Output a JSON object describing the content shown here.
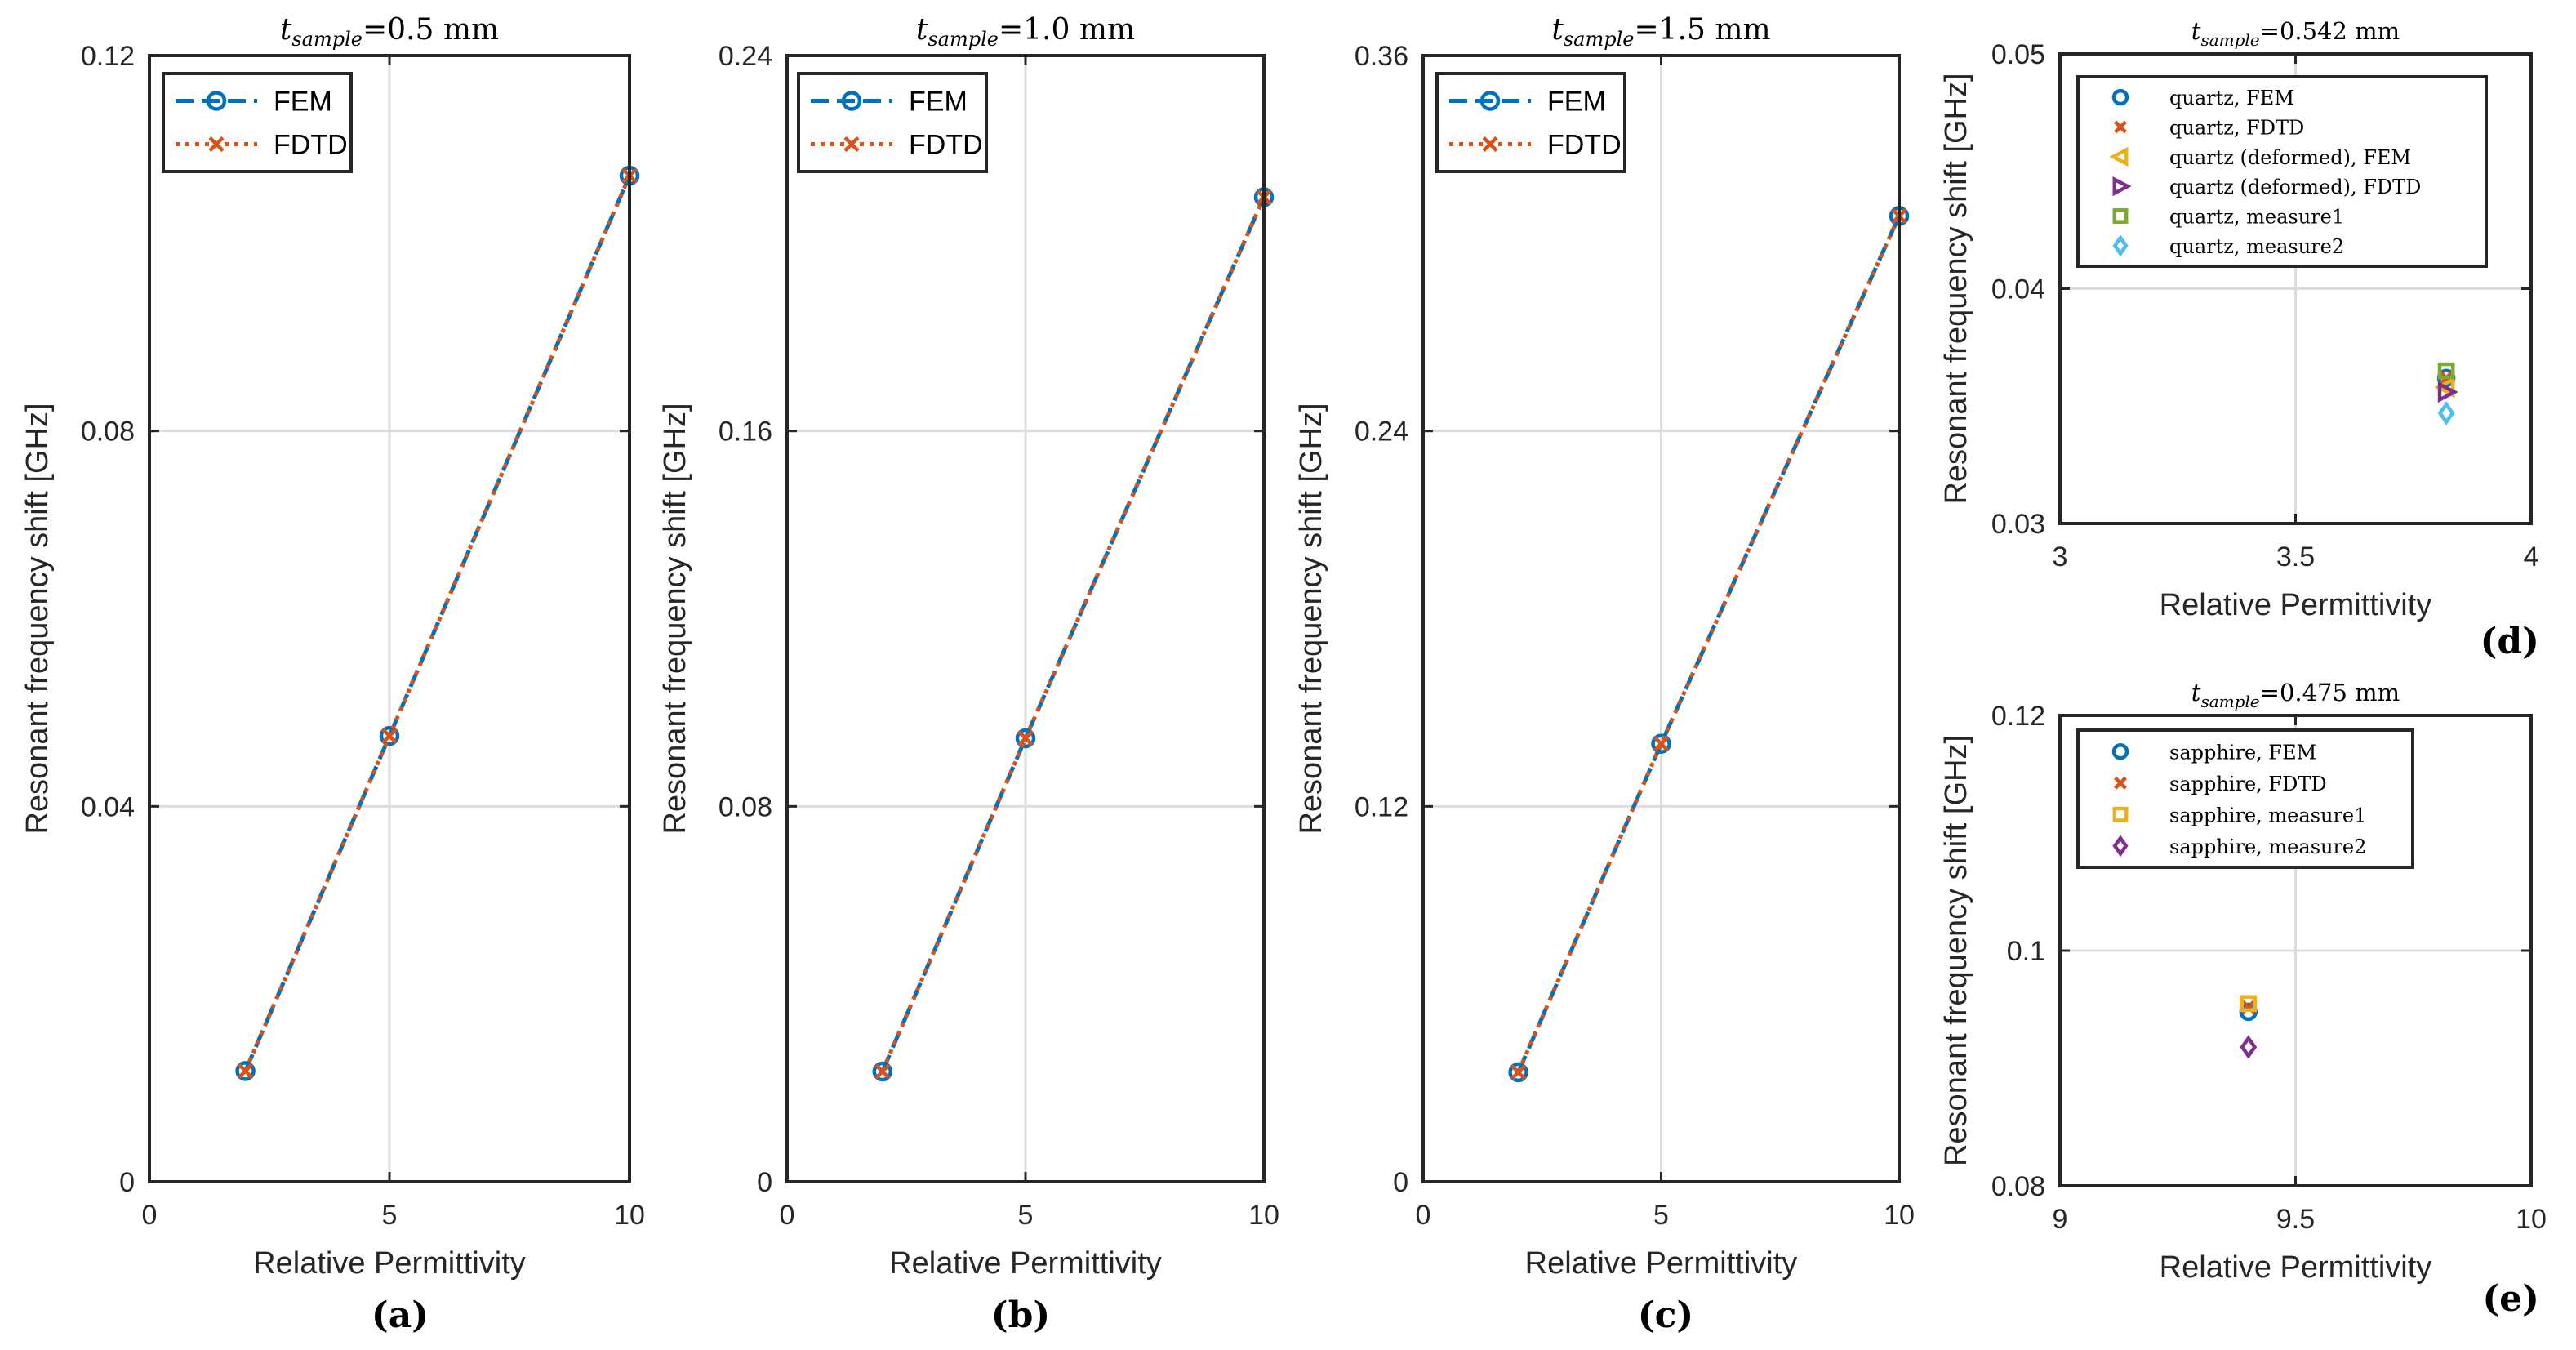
{
  "colors": {
    "fem": "#0072BD",
    "fdtd": "#D95319",
    "yellow": "#EDB120",
    "purple": "#7E2F8E",
    "green": "#77AC30",
    "cyan": "#4DBEEE"
  },
  "chart_data": [
    {
      "id": "a",
      "type": "line",
      "panel_label": "(a)",
      "title": {
        "var": "t",
        "sub": "sample",
        "rest": "=0.5 mm"
      },
      "xlabel": "Relative Permittivity",
      "ylabel": "Resonant frequency shift [GHz]",
      "xlim": [
        0,
        10
      ],
      "ylim": [
        0,
        0.12
      ],
      "xticks": [
        0,
        5,
        10
      ],
      "xtick_labels": [
        "0",
        "5",
        "10"
      ],
      "yticks": [
        0,
        0.04,
        0.08,
        0.12
      ],
      "ytick_labels": [
        "0",
        "0.04",
        "0.08",
        "0.12"
      ],
      "grid": true,
      "legend_position": "top-left",
      "series": [
        {
          "name": "FEM",
          "marker": "o",
          "line": "dashed",
          "color": "#0072BD",
          "x": [
            2,
            5,
            10
          ],
          "y": [
            0.0118,
            0.0475,
            0.1072
          ]
        },
        {
          "name": "FDTD",
          "marker": "x",
          "line": "dotted",
          "color": "#D95319",
          "x": [
            2,
            5,
            10
          ],
          "y": [
            0.0118,
            0.0475,
            0.1072
          ]
        }
      ]
    },
    {
      "id": "b",
      "type": "line",
      "panel_label": "(b)",
      "title": {
        "var": "t",
        "sub": "sample",
        "rest": "=1.0 mm"
      },
      "xlabel": "Relative Permittivity",
      "ylabel": "Resonant frequency shift [GHz]",
      "xlim": [
        0,
        10
      ],
      "ylim": [
        0,
        0.24
      ],
      "xticks": [
        0,
        5,
        10
      ],
      "xtick_labels": [
        "0",
        "5",
        "10"
      ],
      "yticks": [
        0,
        0.08,
        0.16,
        0.24
      ],
      "ytick_labels": [
        "0",
        "0.08",
        "0.16",
        "0.24"
      ],
      "grid": true,
      "legend_position": "top-left",
      "series": [
        {
          "name": "FEM",
          "marker": "o",
          "line": "dashed",
          "color": "#0072BD",
          "x": [
            2,
            5,
            10
          ],
          "y": [
            0.0235,
            0.0945,
            0.2098
          ]
        },
        {
          "name": "FDTD",
          "marker": "x",
          "line": "dotted",
          "color": "#D95319",
          "x": [
            2,
            5,
            10
          ],
          "y": [
            0.0235,
            0.0945,
            0.2098
          ]
        }
      ]
    },
    {
      "id": "c",
      "type": "line",
      "panel_label": "(c)",
      "title": {
        "var": "t",
        "sub": "sample",
        "rest": "=1.5 mm"
      },
      "xlabel": "Relative Permittivity",
      "ylabel": "Resonant frequency shift [GHz]",
      "xlim": [
        0,
        10
      ],
      "ylim": [
        0,
        0.36
      ],
      "xticks": [
        0,
        5,
        10
      ],
      "xtick_labels": [
        "0",
        "5",
        "10"
      ],
      "yticks": [
        0,
        0.12,
        0.24,
        0.36
      ],
      "ytick_labels": [
        "0",
        "0.12",
        "0.24",
        "0.36"
      ],
      "grid": true,
      "legend_position": "top-left",
      "series": [
        {
          "name": "FEM",
          "marker": "o",
          "line": "dashed",
          "color": "#0072BD",
          "x": [
            2,
            5,
            10
          ],
          "y": [
            0.035,
            0.14,
            0.3087
          ]
        },
        {
          "name": "FDTD",
          "marker": "x",
          "line": "dotted",
          "color": "#D95319",
          "x": [
            2,
            5,
            10
          ],
          "y": [
            0.035,
            0.14,
            0.3087
          ]
        }
      ]
    },
    {
      "id": "d",
      "type": "scatter",
      "panel_label": "(d)",
      "title": {
        "var": "t",
        "sub": "sample",
        "rest": "=0.542 mm"
      },
      "xlabel": "Relative Permittivity",
      "ylabel": "Resonant frequency shift [GHz]",
      "xlim": [
        3,
        4
      ],
      "ylim": [
        0.03,
        0.05
      ],
      "xticks": [
        3,
        3.5,
        4
      ],
      "xtick_labels": [
        "3",
        "3.5",
        "4"
      ],
      "yticks": [
        0.03,
        0.04,
        0.05
      ],
      "ytick_labels": [
        "0.03",
        "0.04",
        "0.05"
      ],
      "grid": true,
      "legend_position": "top-left",
      "series": [
        {
          "name": "quartz, FEM",
          "marker": "o",
          "color": "#0072BD",
          "x": [
            3.82
          ],
          "y": [
            0.0362
          ]
        },
        {
          "name": "quartz, FDTD",
          "marker": "x",
          "color": "#D95319",
          "x": [
            3.82
          ],
          "y": [
            0.0362
          ]
        },
        {
          "name": "quartz (deformed), FEM",
          "marker": "tri-left",
          "color": "#EDB120",
          "x": [
            3.82
          ],
          "y": [
            0.0358
          ]
        },
        {
          "name": "quartz (deformed), FDTD",
          "marker": "tri-right",
          "color": "#7E2F8E",
          "x": [
            3.82
          ],
          "y": [
            0.0356
          ]
        },
        {
          "name": "quartz, measure1",
          "marker": "square",
          "color": "#77AC30",
          "x": [
            3.82
          ],
          "y": [
            0.0365
          ]
        },
        {
          "name": "quartz, measure2",
          "marker": "diamond",
          "color": "#4DBEEE",
          "x": [
            3.82
          ],
          "y": [
            0.0347
          ]
        }
      ]
    },
    {
      "id": "e",
      "type": "scatter",
      "panel_label": "(e)",
      "title": {
        "var": "t",
        "sub": "sample",
        "rest": "=0.475 mm"
      },
      "xlabel": "Relative Permittivity",
      "ylabel": "Resonant frequency shift [GHz]",
      "xlim": [
        9,
        10
      ],
      "ylim": [
        0.08,
        0.12
      ],
      "xticks": [
        9,
        9.5,
        10
      ],
      "xtick_labels": [
        "9",
        "9.5",
        "10"
      ],
      "yticks": [
        0.08,
        0.1,
        0.12
      ],
      "ytick_labels": [
        "0.08",
        "0.1",
        "0.12"
      ],
      "grid": true,
      "legend_position": "top-left",
      "series": [
        {
          "name": "sapphire, FEM",
          "marker": "o",
          "color": "#0072BD",
          "x": [
            9.4
          ],
          "y": [
            0.0948
          ]
        },
        {
          "name": "sapphire, FDTD",
          "marker": "x",
          "color": "#D95319",
          "x": [
            9.4
          ],
          "y": [
            0.0952
          ]
        },
        {
          "name": "sapphire, measure1",
          "marker": "square",
          "color": "#EDB120",
          "x": [
            9.4
          ],
          "y": [
            0.0955
          ]
        },
        {
          "name": "sapphire, measure2",
          "marker": "diamond",
          "color": "#7E2F8E",
          "x": [
            9.4
          ],
          "y": [
            0.0918
          ]
        }
      ]
    }
  ]
}
